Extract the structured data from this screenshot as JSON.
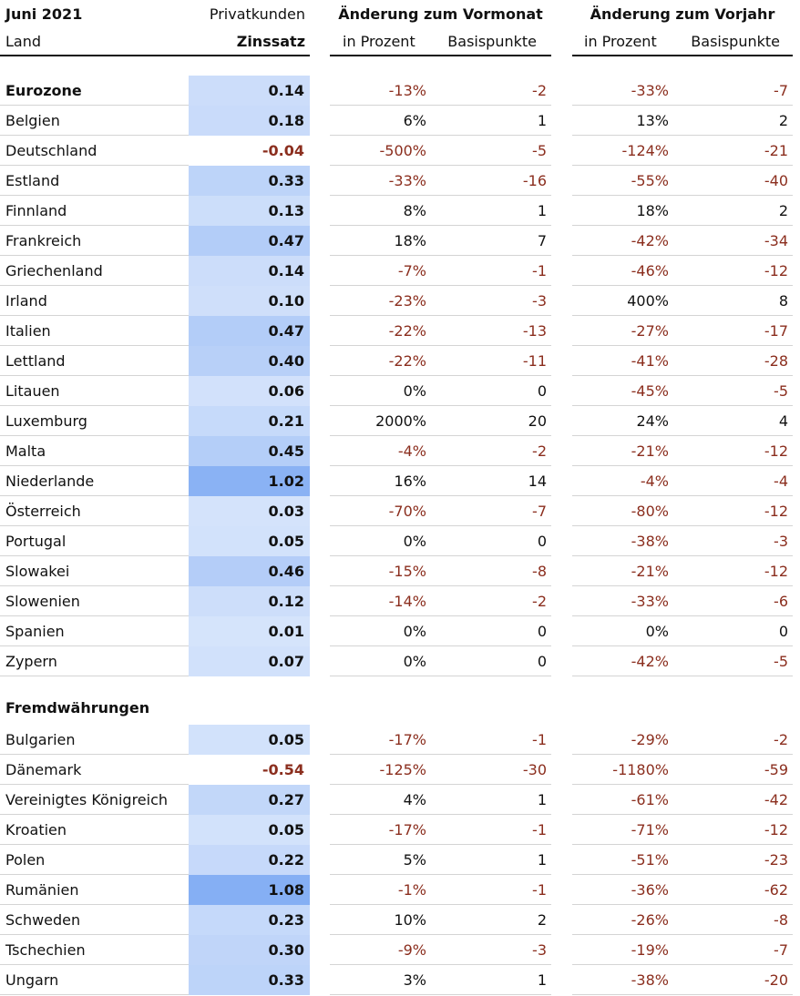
{
  "header": {
    "period": "Juni 2021",
    "segment": "Privatkunden",
    "land_label": "Land",
    "rate_label": "Zinssatz",
    "group_mom": "Änderung zum Vormonat",
    "group_yoy": "Änderung zum Vorjahr",
    "pct_label": "in Prozent",
    "bp_label": "Basispunkte"
  },
  "colors": {
    "negative_text": "#8b2e1e",
    "rate_bg_scale": [
      "#d6e4fb",
      "#85aff4"
    ]
  },
  "chart_data": {
    "type": "table",
    "columns": [
      "Land",
      "Zinssatz",
      "Vormonat in Prozent",
      "Vormonat Basispunkte",
      "Vorjahr in Prozent",
      "Vorjahr Basispunkte"
    ],
    "sections": [
      {
        "title": "",
        "rows": [
          {
            "country": "Eurozone",
            "rate": "0.14",
            "mom_pct": "-13%",
            "mom_bp": "-2",
            "yoy_pct": "-33%",
            "yoy_bp": "-7",
            "bold": true
          },
          {
            "country": "Belgien",
            "rate": "0.18",
            "mom_pct": "6%",
            "mom_bp": "1",
            "yoy_pct": "13%",
            "yoy_bp": "2"
          },
          {
            "country": "Deutschland",
            "rate": "-0.04",
            "mom_pct": "-500%",
            "mom_bp": "-5",
            "yoy_pct": "-124%",
            "yoy_bp": "-21"
          },
          {
            "country": "Estland",
            "rate": "0.33",
            "mom_pct": "-33%",
            "mom_bp": "-16",
            "yoy_pct": "-55%",
            "yoy_bp": "-40"
          },
          {
            "country": "Finnland",
            "rate": "0.13",
            "mom_pct": "8%",
            "mom_bp": "1",
            "yoy_pct": "18%",
            "yoy_bp": "2"
          },
          {
            "country": "Frankreich",
            "rate": "0.47",
            "mom_pct": "18%",
            "mom_bp": "7",
            "yoy_pct": "-42%",
            "yoy_bp": "-34"
          },
          {
            "country": "Griechenland",
            "rate": "0.14",
            "mom_pct": "-7%",
            "mom_bp": "-1",
            "yoy_pct": "-46%",
            "yoy_bp": "-12"
          },
          {
            "country": "Irland",
            "rate": "0.10",
            "mom_pct": "-23%",
            "mom_bp": "-3",
            "yoy_pct": "400%",
            "yoy_bp": "8"
          },
          {
            "country": "Italien",
            "rate": "0.47",
            "mom_pct": "-22%",
            "mom_bp": "-13",
            "yoy_pct": "-27%",
            "yoy_bp": "-17"
          },
          {
            "country": "Lettland",
            "rate": "0.40",
            "mom_pct": "-22%",
            "mom_bp": "-11",
            "yoy_pct": "-41%",
            "yoy_bp": "-28"
          },
          {
            "country": "Litauen",
            "rate": "0.06",
            "mom_pct": "0%",
            "mom_bp": "0",
            "yoy_pct": "-45%",
            "yoy_bp": "-5"
          },
          {
            "country": "Luxemburg",
            "rate": "0.21",
            "mom_pct": "2000%",
            "mom_bp": "20",
            "yoy_pct": "24%",
            "yoy_bp": "4"
          },
          {
            "country": "Malta",
            "rate": "0.45",
            "mom_pct": "-4%",
            "mom_bp": "-2",
            "yoy_pct": "-21%",
            "yoy_bp": "-12"
          },
          {
            "country": "Niederlande",
            "rate": "1.02",
            "mom_pct": "16%",
            "mom_bp": "14",
            "yoy_pct": "-4%",
            "yoy_bp": "-4"
          },
          {
            "country": "Österreich",
            "rate": "0.03",
            "mom_pct": "-70%",
            "mom_bp": "-7",
            "yoy_pct": "-80%",
            "yoy_bp": "-12"
          },
          {
            "country": "Portugal",
            "rate": "0.05",
            "mom_pct": "0%",
            "mom_bp": "0",
            "yoy_pct": "-38%",
            "yoy_bp": "-3"
          },
          {
            "country": "Slowakei",
            "rate": "0.46",
            "mom_pct": "-15%",
            "mom_bp": "-8",
            "yoy_pct": "-21%",
            "yoy_bp": "-12"
          },
          {
            "country": "Slowenien",
            "rate": "0.12",
            "mom_pct": "-14%",
            "mom_bp": "-2",
            "yoy_pct": "-33%",
            "yoy_bp": "-6"
          },
          {
            "country": "Spanien",
            "rate": "0.01",
            "mom_pct": "0%",
            "mom_bp": "0",
            "yoy_pct": "0%",
            "yoy_bp": "0"
          },
          {
            "country": "Zypern",
            "rate": "0.07",
            "mom_pct": "0%",
            "mom_bp": "0",
            "yoy_pct": "-42%",
            "yoy_bp": "-5"
          }
        ]
      },
      {
        "title": "Fremdwährungen",
        "rows": [
          {
            "country": "Bulgarien",
            "rate": "0.05",
            "mom_pct": "-17%",
            "mom_bp": "-1",
            "yoy_pct": "-29%",
            "yoy_bp": "-2"
          },
          {
            "country": "Dänemark",
            "rate": "-0.54",
            "mom_pct": "-125%",
            "mom_bp": "-30",
            "yoy_pct": "-1180%",
            "yoy_bp": "-59"
          },
          {
            "country": "Vereinigtes Königreich",
            "rate": "0.27",
            "mom_pct": "4%",
            "mom_bp": "1",
            "yoy_pct": "-61%",
            "yoy_bp": "-42"
          },
          {
            "country": "Kroatien",
            "rate": "0.05",
            "mom_pct": "-17%",
            "mom_bp": "-1",
            "yoy_pct": "-71%",
            "yoy_bp": "-12"
          },
          {
            "country": "Polen",
            "rate": "0.22",
            "mom_pct": "5%",
            "mom_bp": "1",
            "yoy_pct": "-51%",
            "yoy_bp": "-23"
          },
          {
            "country": "Rumänien",
            "rate": "1.08",
            "mom_pct": "-1%",
            "mom_bp": "-1",
            "yoy_pct": "-36%",
            "yoy_bp": "-62"
          },
          {
            "country": "Schweden",
            "rate": "0.23",
            "mom_pct": "10%",
            "mom_bp": "2",
            "yoy_pct": "-26%",
            "yoy_bp": "-8"
          },
          {
            "country": "Tschechien",
            "rate": "0.30",
            "mom_pct": "-9%",
            "mom_bp": "-3",
            "yoy_pct": "-19%",
            "yoy_bp": "-7"
          },
          {
            "country": "Ungarn",
            "rate": "0.33",
            "mom_pct": "3%",
            "mom_bp": "1",
            "yoy_pct": "-38%",
            "yoy_bp": "-20"
          }
        ]
      }
    ]
  }
}
